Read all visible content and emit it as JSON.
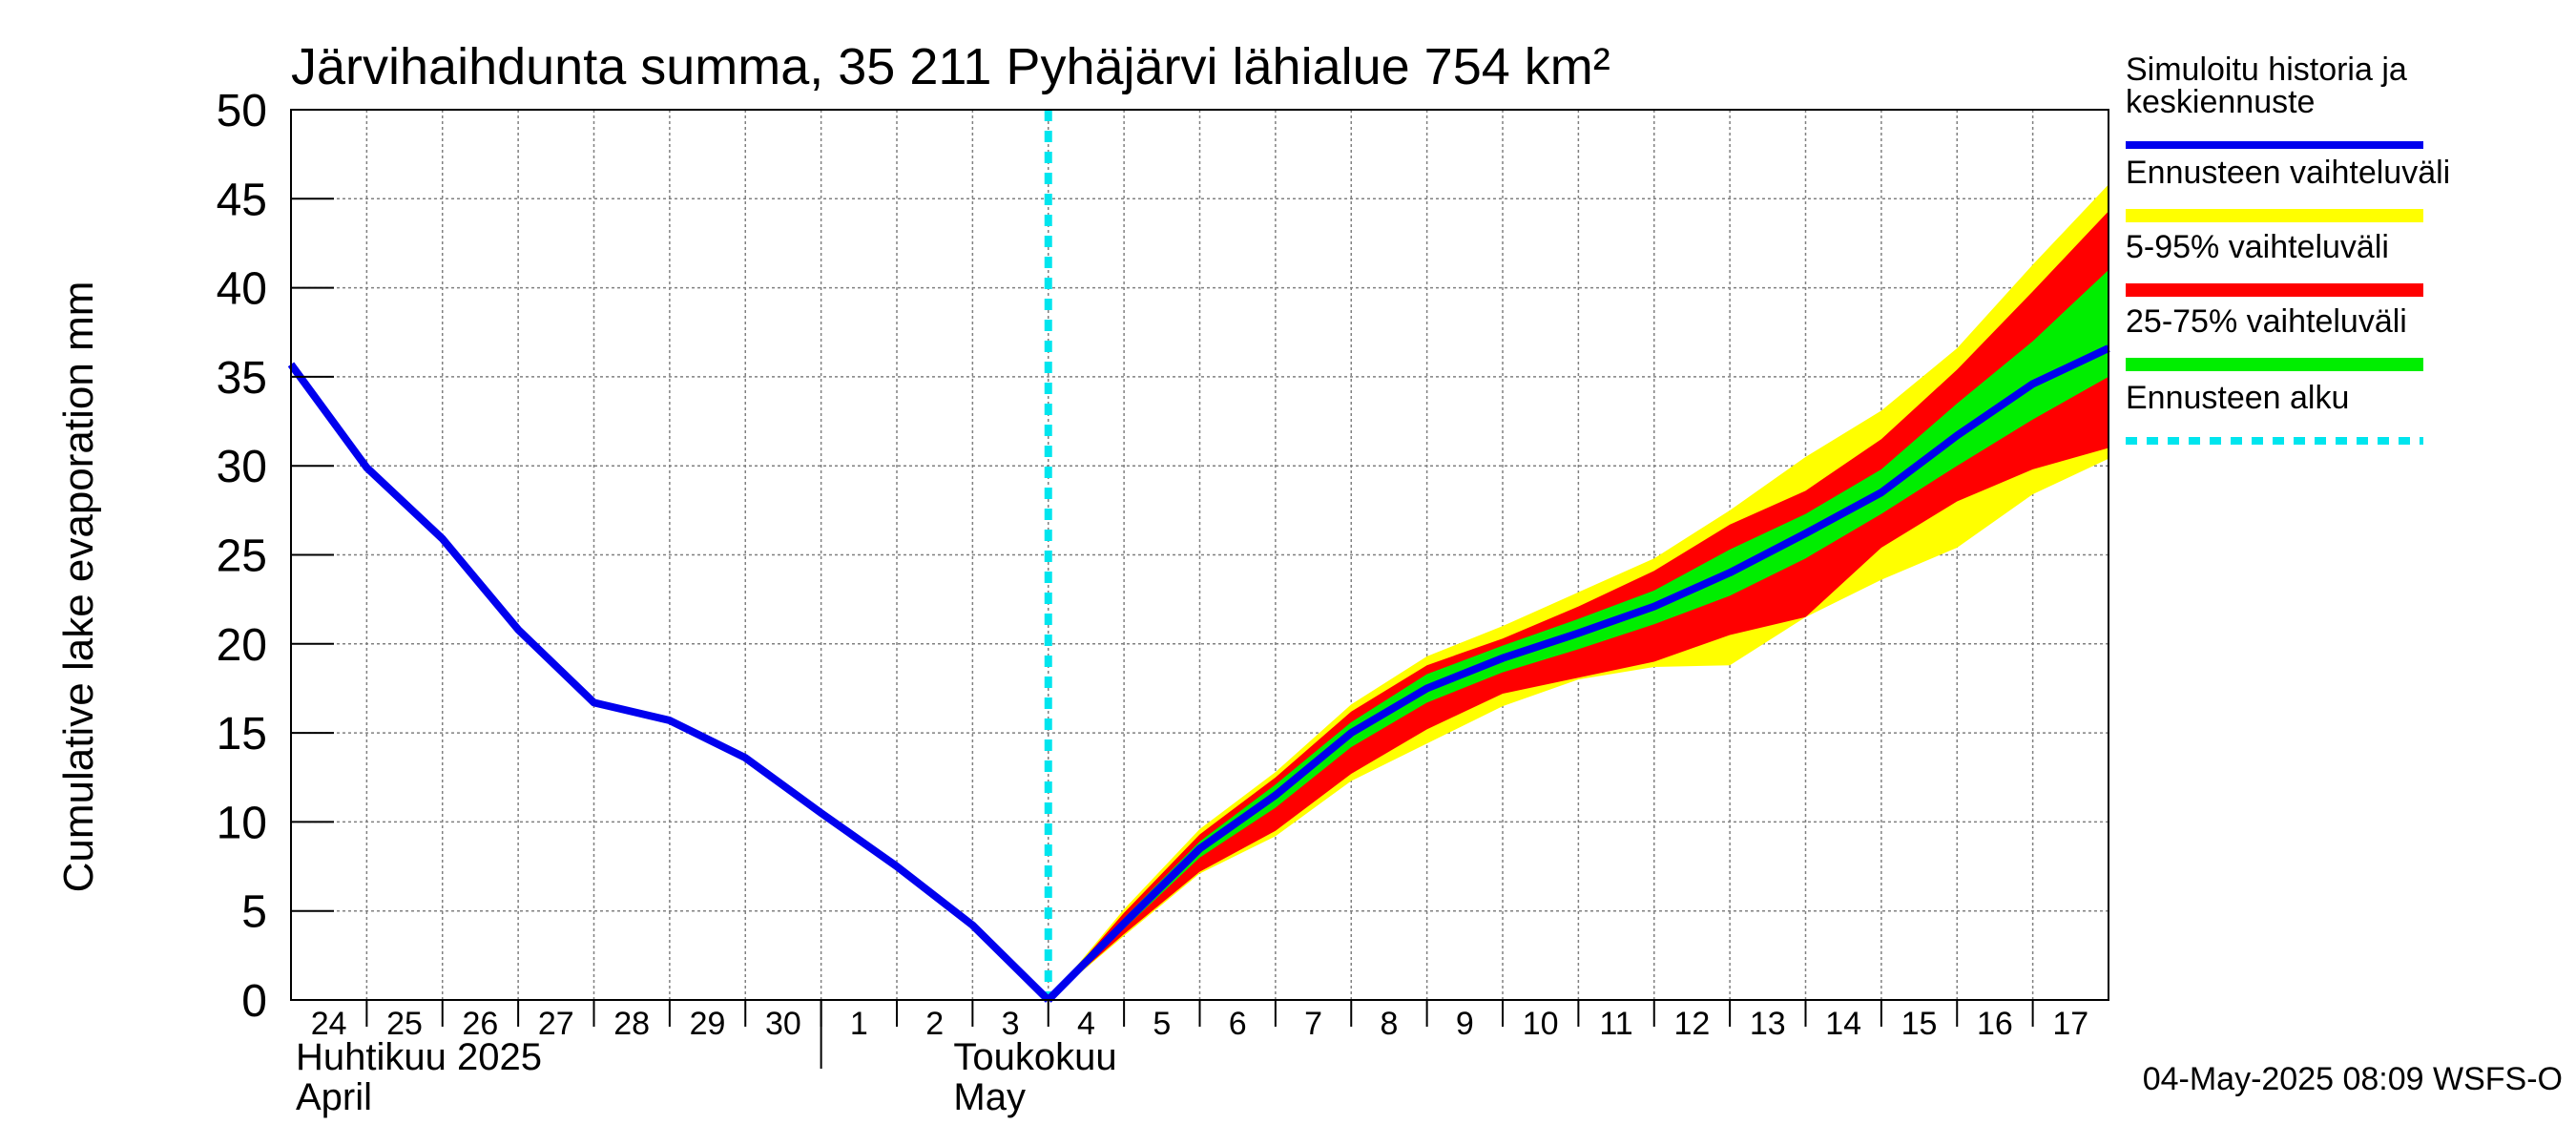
{
  "chart_data": {
    "type": "area",
    "title": "Järvihaihdunta summa, 35 211 Pyhäjärvi lähialue 754 km²",
    "ylabel": "Cumulative lake evaporation   mm",
    "ylim": [
      0,
      50
    ],
    "yticks": [
      "0",
      "5",
      "10",
      "15",
      "20",
      "25",
      "30",
      "35",
      "40",
      "45",
      "50"
    ],
    "xlim": [
      "2025-04-24",
      "2025-05-18"
    ],
    "x_tick_labels": [
      "24",
      "25",
      "26",
      "27",
      "28",
      "29",
      "30",
      "1",
      "2",
      "3",
      "4",
      "5",
      "6",
      "7",
      "8",
      "9",
      "10",
      "11",
      "12",
      "13",
      "14",
      "15",
      "16",
      "17"
    ],
    "month_labels": [
      {
        "fi": "Huhtikuu  2025",
        "en": "April"
      },
      {
        "fi": "Toukokuu",
        "en": "May"
      }
    ],
    "grid": true,
    "legend_position": "right",
    "footer": "04-May-2025 08:09 WSFS-O",
    "forecast_start": "2025-05-04",
    "history": {
      "name": "Simuloitu historia ja keskiennuste",
      "color": "#0000ee",
      "x": [
        "2025-04-24",
        "2025-04-25",
        "2025-04-26",
        "2025-04-27",
        "2025-04-28",
        "2025-04-29",
        "2025-04-30",
        "2025-05-01",
        "2025-05-02",
        "2025-05-03",
        "2025-05-04"
      ],
      "y": [
        35.7,
        29.9,
        25.9,
        20.8,
        16.7,
        15.7,
        13.6,
        10.5,
        7.5,
        4.2,
        0
      ]
    },
    "forecast": {
      "x": [
        "2025-05-04",
        "2025-05-05",
        "2025-05-06",
        "2025-05-07",
        "2025-05-08",
        "2025-05-09",
        "2025-05-10",
        "2025-05-11",
        "2025-05-12",
        "2025-05-13",
        "2025-05-14",
        "2025-05-15",
        "2025-05-16",
        "2025-05-17",
        "2025-05-18"
      ],
      "median": [
        0,
        4.3,
        8.5,
        11.5,
        15.0,
        17.5,
        19.2,
        20.6,
        22.1,
        24.0,
        26.2,
        28.5,
        31.7,
        34.6,
        36.6
      ],
      "p25": [
        0,
        4.0,
        8.0,
        10.8,
        14.2,
        16.7,
        18.4,
        19.7,
        21.1,
        22.7,
        24.8,
        27.3,
        30.0,
        32.6,
        35.0
      ],
      "p75": [
        0,
        4.6,
        8.9,
        12.1,
        15.6,
        18.3,
        19.9,
        21.4,
        23.0,
        25.3,
        27.3,
        29.8,
        33.5,
        37.0,
        41.0
      ],
      "p5": [
        0,
        3.7,
        7.2,
        9.5,
        12.7,
        15.2,
        17.2,
        18.1,
        19.0,
        20.5,
        21.5,
        25.4,
        28.0,
        29.8,
        31.0
      ],
      "p95": [
        0,
        4.9,
        9.3,
        12.5,
        16.2,
        18.8,
        20.3,
        22.1,
        24.1,
        26.7,
        28.6,
        31.5,
        35.4,
        39.8,
        44.3
      ],
      "min": [
        0,
        3.6,
        7.1,
        9.2,
        12.3,
        14.4,
        16.5,
        18.0,
        18.7,
        18.8,
        21.5,
        23.6,
        25.4,
        28.4,
        30.4
      ],
      "max": [
        0,
        5.1,
        9.6,
        12.8,
        16.6,
        19.3,
        21.0,
        22.9,
        24.8,
        27.5,
        30.5,
        33.1,
        36.6,
        41.3,
        45.8
      ]
    },
    "legend": [
      {
        "key": "hist",
        "label_lines": [
          "Simuloitu historia ja",
          "keskiennuste"
        ],
        "color": "#0000ee",
        "style": "line"
      },
      {
        "key": "minmax",
        "label_lines": [
          "Ennusteen vaihteluväli"
        ],
        "color": "#ffff00",
        "style": "band"
      },
      {
        "key": "p5_95",
        "label_lines": [
          "5-95% vaihteluväli"
        ],
        "color": "#ff0000",
        "style": "band"
      },
      {
        "key": "p25_75",
        "label_lines": [
          "25-75% vaihteluväli"
        ],
        "color": "#00ee00",
        "style": "band"
      },
      {
        "key": "start",
        "label_lines": [
          "Ennusteen alku"
        ],
        "color": "#00e5ee",
        "style": "dashed"
      }
    ]
  }
}
